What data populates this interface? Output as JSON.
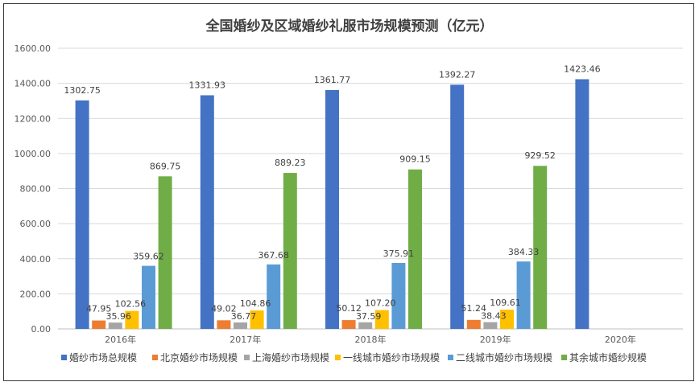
{
  "chart_data": {
    "type": "bar",
    "title": "全国婚纱及区域婚纱礼服市场规模预测（亿元）",
    "categories": [
      "2016年",
      "2017年",
      "2018年",
      "2019年",
      "2020年"
    ],
    "ylim": [
      0,
      1600
    ],
    "yticks": [
      "0.00",
      "200.00",
      "400.00",
      "600.00",
      "800.00",
      "1000.00",
      "1200.00",
      "1400.00",
      "1600.00"
    ],
    "grid": true,
    "legend_position": "bottom",
    "series": [
      {
        "name": "婚纱市场总规模",
        "color": "#4472c4",
        "values": [
          1302.75,
          1331.93,
          1361.77,
          1392.27,
          1423.46
        ],
        "labels": [
          "1302.75",
          "1331.93",
          "1361.77",
          "1392.27",
          "1423.46"
        ]
      },
      {
        "name": "北京婚纱市场规模",
        "color": "#ed7d31",
        "values": [
          47.95,
          49.02,
          50.12,
          51.24,
          null
        ],
        "labels": [
          "47.95",
          "49.02",
          "50.12",
          "51.24",
          ""
        ]
      },
      {
        "name": "上海婚纱市场规模",
        "color": "#a5a5a5",
        "values": [
          35.96,
          36.77,
          37.59,
          38.43,
          null
        ],
        "labels": [
          "35.96",
          "36.77",
          "37.59",
          "38.43",
          ""
        ]
      },
      {
        "name": "一线城市婚纱市场规模",
        "color": "#ffc000",
        "values": [
          102.56,
          104.86,
          107.2,
          109.61,
          null
        ],
        "labels": [
          "102.56",
          "104.86",
          "107.20",
          "109.61",
          ""
        ]
      },
      {
        "name": "二线城市婚纱市场规模",
        "color": "#5b9bd5",
        "values": [
          359.62,
          367.68,
          375.91,
          384.33,
          null
        ],
        "labels": [
          "359.62",
          "367.68",
          "375.91",
          "384.33",
          ""
        ]
      },
      {
        "name": "其余城市婚纱规模",
        "color": "#70ad47",
        "values": [
          869.75,
          889.23,
          909.15,
          929.52,
          null
        ],
        "labels": [
          "869.75",
          "889.23",
          "909.15",
          "929.52",
          ""
        ]
      }
    ]
  }
}
